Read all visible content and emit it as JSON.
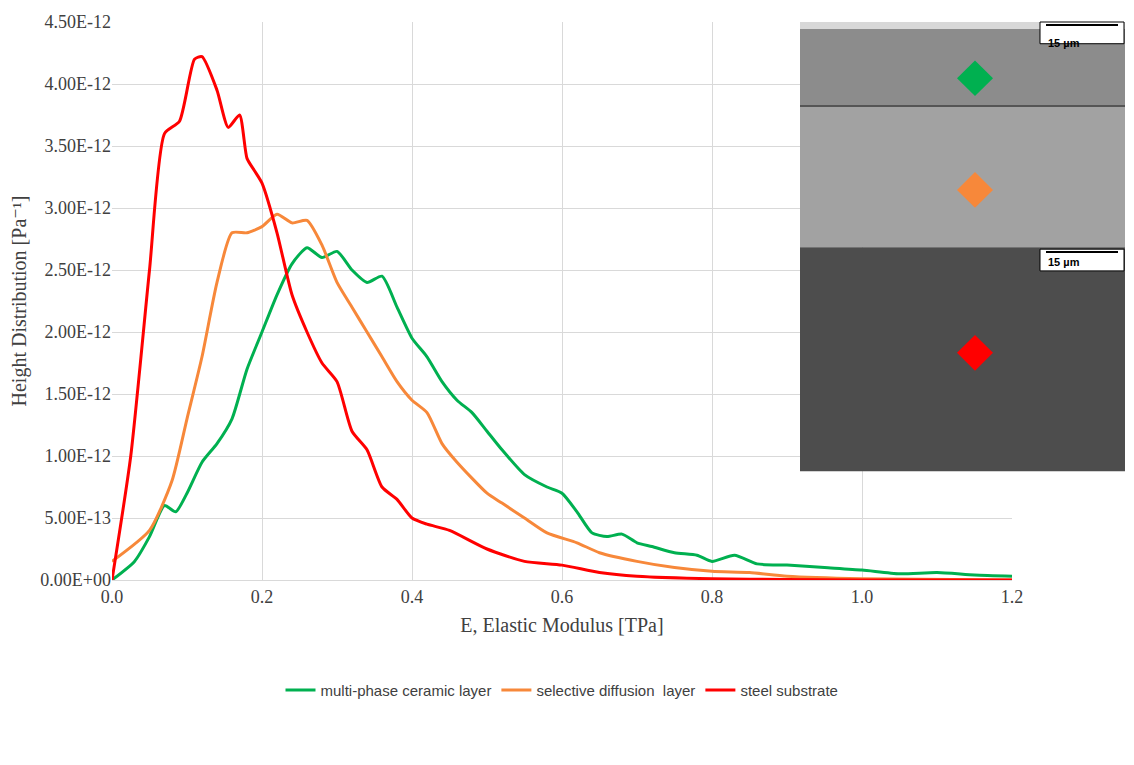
{
  "chart_data": {
    "type": "line",
    "x_label": "E, Elastic Modulus [TPa]",
    "y_label": "Height Distribution [Pa⁻¹]",
    "xlim": [
      0,
      1.2
    ],
    "xticks": [
      {
        "value": 0,
        "label": "0.0"
      },
      0.2,
      0.4,
      0.6,
      0.8,
      {
        "value": 1,
        "label": "1.0"
      },
      1.2
    ],
    "ylim": [
      0,
      4.5e-12
    ],
    "yticks": [
      {
        "value": 0,
        "label": "0.00E+00"
      },
      {
        "value": 5e-13,
        "label": "5.00E-13"
      },
      {
        "value": 1e-12,
        "label": "1.00E-12"
      },
      {
        "value": 1.5e-12,
        "label": "1.50E-12"
      },
      {
        "value": 2e-12,
        "label": "2.00E-12"
      },
      {
        "value": 2.5e-12,
        "label": "2.50E-12"
      },
      {
        "value": 3e-12,
        "label": "3.00E-12"
      },
      {
        "value": 3.5e-12,
        "label": "3.50E-12"
      },
      {
        "value": 4e-12,
        "label": "4.00E-12"
      },
      {
        "value": 4.5e-12,
        "label": "4.50E-12"
      }
    ],
    "grid": true,
    "legend": "bottom",
    "inset": {
      "scale_bars": [
        "15 µm",
        "15 µm"
      ]
    },
    "series": [
      {
        "name": "multi-phase ceramic layer",
        "color": "#00B050",
        "x": [
          0,
          0.03,
          0.05,
          0.07,
          0.085,
          0.1,
          0.12,
          0.14,
          0.16,
          0.18,
          0.2,
          0.22,
          0.24,
          0.26,
          0.28,
          0.3,
          0.32,
          0.34,
          0.36,
          0.38,
          0.4,
          0.42,
          0.44,
          0.46,
          0.48,
          0.5,
          0.52,
          0.55,
          0.58,
          0.6,
          0.62,
          0.64,
          0.66,
          0.68,
          0.7,
          0.72,
          0.75,
          0.78,
          0.8,
          0.83,
          0.86,
          0.9,
          0.95,
          1.0,
          1.05,
          1.1,
          1.15,
          1.2
        ],
        "values": [
          0,
          1.5e-13,
          3.5e-13,
          6e-13,
          5.5e-13,
          7e-13,
          9.5e-13,
          1.1e-12,
          1.3e-12,
          1.7e-12,
          2e-12,
          2.3e-12,
          2.55e-12,
          2.68e-12,
          2.6e-12,
          2.65e-12,
          2.5e-12,
          2.4e-12,
          2.45e-12,
          2.2e-12,
          1.95e-12,
          1.8e-12,
          1.6e-12,
          1.45e-12,
          1.35e-12,
          1.2e-12,
          1.05e-12,
          8.5e-13,
          7.5e-13,
          7e-13,
          5.5e-13,
          3.8e-13,
          3.5e-13,
          3.7e-13,
          3e-13,
          2.7e-13,
          2.2e-13,
          2e-13,
          1.5e-13,
          2e-13,
          1.3e-13,
          1.2e-13,
          1e-13,
          8e-14,
          5e-14,
          6e-14,
          4e-14,
          3e-14
        ]
      },
      {
        "name": "selective diffusion  layer",
        "color": "#F7883A",
        "x": [
          0,
          0.05,
          0.08,
          0.1,
          0.12,
          0.14,
          0.16,
          0.18,
          0.2,
          0.22,
          0.24,
          0.26,
          0.28,
          0.3,
          0.32,
          0.34,
          0.36,
          0.38,
          0.4,
          0.42,
          0.44,
          0.46,
          0.5,
          0.52,
          0.55,
          0.58,
          0.62,
          0.65,
          0.7,
          0.75,
          0.8,
          0.85,
          0.9,
          1.0,
          1.2
        ],
        "values": [
          1.5e-13,
          4e-13,
          8e-13,
          1.3e-12,
          1.8e-12,
          2.4e-12,
          2.8e-12,
          2.8e-12,
          2.85e-12,
          2.95e-12,
          2.88e-12,
          2.9e-12,
          2.7e-12,
          2.4e-12,
          2.2e-12,
          2e-12,
          1.8e-12,
          1.6e-12,
          1.45e-12,
          1.35e-12,
          1.1e-12,
          9.5e-13,
          7e-13,
          6.2e-13,
          5e-13,
          3.8e-13,
          3e-13,
          2.2e-13,
          1.5e-13,
          1e-13,
          7e-14,
          6e-14,
          3e-14,
          1e-14,
          0
        ]
      },
      {
        "name": "steel substrate",
        "color": "#FF0000",
        "x": [
          0,
          0.025,
          0.05,
          0.07,
          0.09,
          0.11,
          0.12,
          0.14,
          0.155,
          0.17,
          0.18,
          0.19,
          0.2,
          0.22,
          0.24,
          0.26,
          0.28,
          0.3,
          0.32,
          0.34,
          0.36,
          0.38,
          0.4,
          0.42,
          0.45,
          0.5,
          0.55,
          0.6,
          0.65,
          0.7,
          0.8,
          0.9,
          1.0,
          1.2
        ],
        "values": [
          0,
          1e-12,
          2.5e-12,
          3.6e-12,
          3.7e-12,
          4.2e-12,
          4.22e-12,
          3.95e-12,
          3.65e-12,
          3.75e-12,
          3.4e-12,
          3.3e-12,
          3.2e-12,
          2.8e-12,
          2.3e-12,
          2e-12,
          1.75e-12,
          1.6e-12,
          1.2e-12,
          1.05e-12,
          7.5e-13,
          6.5e-13,
          5e-13,
          4.5e-13,
          4e-13,
          2.5e-13,
          1.5e-13,
          1.2e-13,
          6e-14,
          3e-14,
          1e-14,
          5e-15,
          0,
          0
        ]
      }
    ]
  }
}
